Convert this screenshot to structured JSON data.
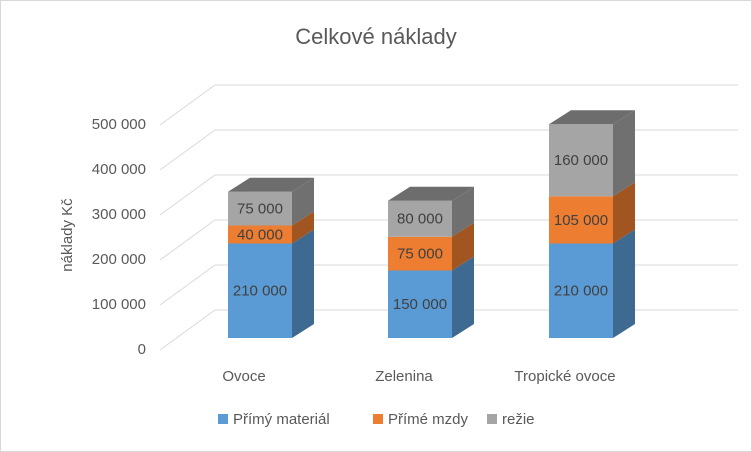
{
  "chart_data": {
    "type": "bar3d_stacked",
    "title": "Celkové náklady",
    "y_label": "náklady Kč",
    "categories": [
      "Ovoce",
      "Zelenina",
      "Tropické ovoce"
    ],
    "series": [
      {
        "name": "Přímý materiál",
        "color": "#5b9bd5",
        "values": [
          210000,
          150000,
          210000
        ],
        "value_labels": [
          "210 000",
          "150 000",
          "210 000"
        ]
      },
      {
        "name": "Přímé mzdy",
        "color": "#ed7d31",
        "values": [
          40000,
          75000,
          105000
        ],
        "value_labels": [
          "40 000",
          "75 000",
          "105 000"
        ]
      },
      {
        "name": "režie",
        "color": "#a5a5a5",
        "values": [
          75000,
          80000,
          160000
        ],
        "value_labels": [
          "75 000",
          "80 000",
          "160 000"
        ]
      }
    ],
    "ylim": [
      0,
      500000
    ],
    "yticks": [
      0,
      {
        "value": 100000,
        "label": "100 000"
      },
      {
        "value": 200000,
        "label": "200 000"
      },
      {
        "value": 300000,
        "label": "300 000"
      },
      {
        "value": 400000,
        "label": "400 000"
      },
      {
        "value": 500000,
        "label": "500 000"
      }
    ],
    "grid": true,
    "legend": "bottom"
  }
}
